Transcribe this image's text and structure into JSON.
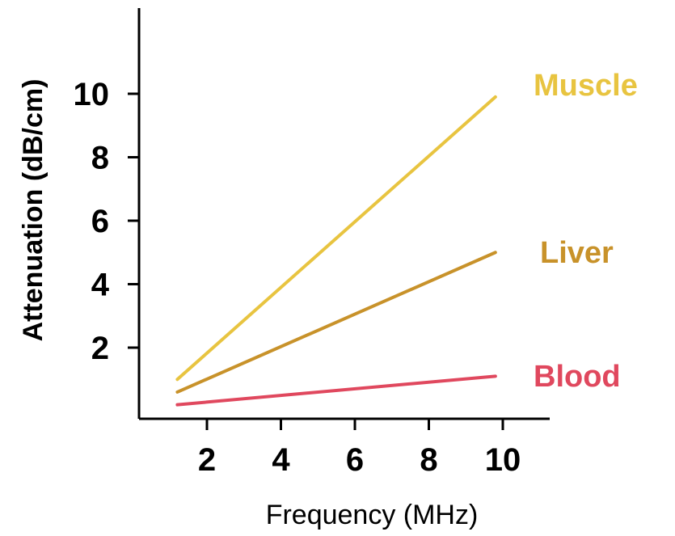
{
  "chart_data": {
    "type": "line",
    "title": "",
    "xlabel": "Frequency (MHz)",
    "ylabel": "Attenuation (dB/cm)",
    "xlim": [
      0,
      12
    ],
    "ylim": [
      0,
      12.5
    ],
    "xticks": [
      2,
      4,
      6,
      8,
      10
    ],
    "yticks": [
      2,
      4,
      6,
      8,
      10
    ],
    "grid": false,
    "legend": "labels at line ends (right)",
    "series": [
      {
        "name": "Muscle",
        "color": "#E8C440",
        "x": [
          1.2,
          9.8
        ],
        "y": [
          1.0,
          9.9
        ]
      },
      {
        "name": "Liver",
        "color": "#C8922A",
        "x": [
          1.2,
          9.8
        ],
        "y": [
          0.6,
          5.0
        ]
      },
      {
        "name": "Blood",
        "color": "#E0485E",
        "x": [
          1.2,
          9.8
        ],
        "y": [
          0.2,
          1.1
        ]
      }
    ]
  }
}
